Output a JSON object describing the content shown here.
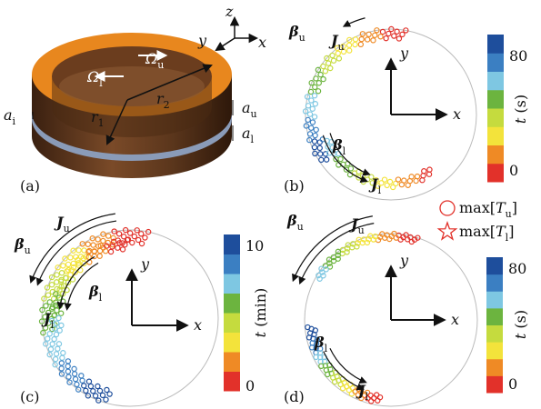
{
  "panel_a": {
    "label": "(a)",
    "axes": {
      "x": "x",
      "y": "y",
      "z": "z"
    },
    "omega_u": {
      "base": "Ω",
      "sub": "u"
    },
    "omega_l": {
      "base": "Ω",
      "sub": "l"
    },
    "r1": {
      "base": "r",
      "sub": "1"
    },
    "r2": {
      "base": "r",
      "sub": "2"
    },
    "a_u": {
      "base": "a",
      "sub": "u"
    },
    "a_l": {
      "base": "a",
      "sub": "l"
    },
    "a_i": {
      "base": "a",
      "sub": "i"
    }
  },
  "panel_b": {
    "label": "(b)",
    "x": "x",
    "y": "y",
    "beta_u": {
      "base": "β",
      "sub": "u"
    },
    "beta_l": {
      "base": "β",
      "sub": "l"
    },
    "J_u": {
      "base": "J",
      "sub": "u"
    },
    "J_l": {
      "base": "J",
      "sub": "l"
    },
    "colorbar": {
      "var": "t",
      "unit": "(s)",
      "ticks": [
        80,
        0
      ]
    }
  },
  "panel_c": {
    "label": "(c)",
    "x": "x",
    "y": "y",
    "beta_u": {
      "base": "β",
      "sub": "u"
    },
    "beta_l": {
      "base": "β",
      "sub": "l"
    },
    "J_u": {
      "base": "J",
      "sub": "u"
    },
    "J_l": {
      "base": "J",
      "sub": "l"
    },
    "colorbar": {
      "var": "t",
      "unit": "(min)",
      "ticks": [
        10,
        0
      ]
    }
  },
  "panel_d": {
    "label": "(d)",
    "x": "x",
    "y": "y",
    "beta_u": {
      "base": "β",
      "sub": "u"
    },
    "beta_l": {
      "base": "β",
      "sub": "l"
    },
    "J_u": {
      "base": "J",
      "sub": "u"
    },
    "J_l": {
      "base": "J",
      "sub": "l"
    },
    "colorbar": {
      "var": "t",
      "unit": "(s)",
      "ticks": [
        80,
        0
      ]
    }
  },
  "legend": [
    {
      "prefix": "max[",
      "var": "T",
      "sub": "u",
      "suffix": "]"
    },
    {
      "prefix": "max[",
      "var": "T",
      "sub": "l",
      "suffix": "]"
    }
  ]
}
